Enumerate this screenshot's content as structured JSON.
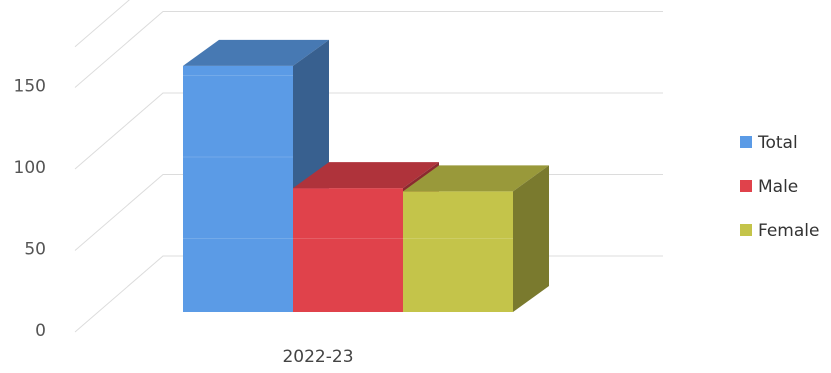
{
  "chart_data": {
    "type": "bar",
    "style": "3d-clustered-column",
    "categories": [
      "2022-23"
    ],
    "series": [
      {
        "name": "Total",
        "values": [
          151
        ],
        "color": "#5b9be6"
      },
      {
        "name": "Male",
        "values": [
          76
        ],
        "color": "#e0424b"
      },
      {
        "name": "Female",
        "values": [
          74
        ],
        "color": "#c4c44a"
      }
    ],
    "title": "",
    "xlabel": "",
    "ylabel": "",
    "ylim": [
      0,
      175
    ],
    "yticks": [
      "0",
      "50",
      "100",
      "150"
    ],
    "grid": true,
    "legend_position": "right"
  }
}
